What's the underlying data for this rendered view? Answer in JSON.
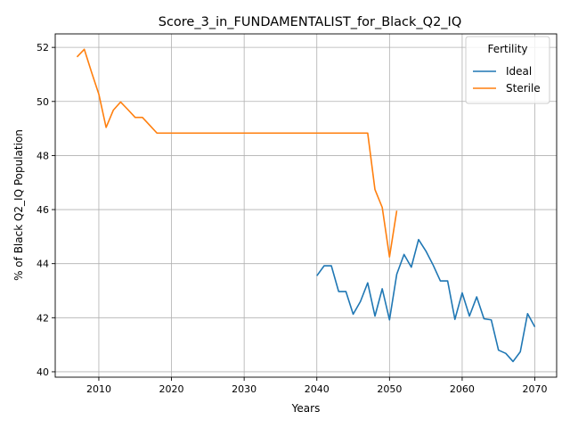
{
  "chart_data": {
    "type": "line",
    "title": "Score_3_in_FUNDAMENTALIST_for_Black_Q2_IQ",
    "xlabel": "Years",
    "ylabel": "% of Black Q2_IQ Population",
    "xlim": [
      2004,
      2073
    ],
    "ylim": [
      39.8,
      52.5
    ],
    "x_ticks": [
      2010,
      2020,
      2030,
      2040,
      2050,
      2060,
      2070
    ],
    "y_ticks": [
      40,
      42,
      44,
      46,
      48,
      50,
      52
    ],
    "grid": true,
    "legend": {
      "title": "Fertility",
      "placement": "top-right"
    },
    "series": [
      {
        "name": "Ideal",
        "color": "#1f77b4",
        "points": [
          [
            2040,
            43.55
          ],
          [
            2041,
            43.92
          ],
          [
            2042,
            43.92
          ],
          [
            2043,
            42.97
          ],
          [
            2044,
            42.97
          ],
          [
            2045,
            42.13
          ],
          [
            2046,
            42.6
          ],
          [
            2047,
            43.29
          ],
          [
            2048,
            42.06
          ],
          [
            2049,
            43.07
          ],
          [
            2050,
            41.92
          ],
          [
            2051,
            43.61
          ],
          [
            2052,
            44.34
          ],
          [
            2053,
            43.87
          ],
          [
            2054,
            44.89
          ],
          [
            2055,
            44.47
          ],
          [
            2056,
            43.95
          ],
          [
            2057,
            43.36
          ],
          [
            2058,
            43.36
          ],
          [
            2059,
            41.94
          ],
          [
            2060,
            42.92
          ],
          [
            2061,
            42.06
          ],
          [
            2062,
            42.77
          ],
          [
            2063,
            41.96
          ],
          [
            2064,
            41.92
          ],
          [
            2065,
            40.8
          ],
          [
            2066,
            40.68
          ],
          [
            2067,
            40.38
          ],
          [
            2068,
            40.74
          ],
          [
            2069,
            42.15
          ],
          [
            2070,
            41.66
          ]
        ]
      },
      {
        "name": "Sterile",
        "color": "#ff7f0e",
        "points": [
          [
            2007,
            51.65
          ],
          [
            2008,
            51.93
          ],
          [
            2009,
            51.08
          ],
          [
            2010,
            50.27
          ],
          [
            2011,
            49.04
          ],
          [
            2012,
            49.68
          ],
          [
            2013,
            49.98
          ],
          [
            2014,
            49.7
          ],
          [
            2015,
            49.41
          ],
          [
            2016,
            49.41
          ],
          [
            2017,
            49.12
          ],
          [
            2018,
            48.83
          ],
          [
            2019,
            48.83
          ],
          [
            2020,
            48.83
          ],
          [
            2025,
            48.83
          ],
          [
            2030,
            48.83
          ],
          [
            2035,
            48.83
          ],
          [
            2040,
            48.83
          ],
          [
            2045,
            48.83
          ],
          [
            2046,
            48.83
          ],
          [
            2047,
            48.83
          ],
          [
            2048,
            46.74
          ],
          [
            2049,
            46.08
          ],
          [
            2050,
            44.25
          ],
          [
            2051,
            45.96
          ]
        ]
      }
    ]
  }
}
